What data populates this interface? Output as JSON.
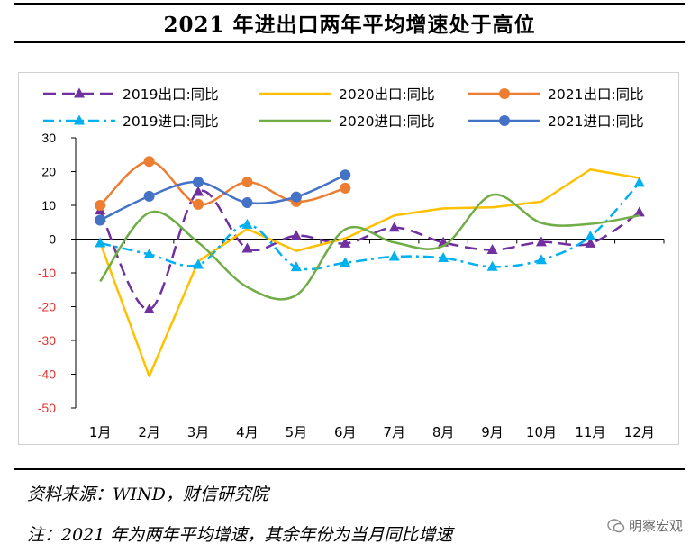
{
  "page": {
    "title": "2021 年进出口两年平均增速处于高位",
    "source_note": "资料来源：WIND，财信研究院",
    "footnote": "注：2021 年为两年平均增速，其余年份为当月同比增速",
    "watermark": "明察宏观"
  },
  "chart_data": {
    "type": "line",
    "title": "",
    "xlabel": "",
    "ylabel": "",
    "categories": [
      "1月",
      "2月",
      "3月",
      "4月",
      "5月",
      "6月",
      "7月",
      "8月",
      "9月",
      "10月",
      "11月",
      "12月"
    ],
    "ylim": [
      -50,
      30
    ],
    "yticks": [
      30,
      20,
      10,
      0,
      -10,
      -20,
      -30,
      -40,
      -50
    ],
    "grid": false,
    "legend_position": "top",
    "negative_tick_color": "#e3342f",
    "series": [
      {
        "name": "2019出口:同比",
        "color": "#7030a0",
        "dash": "14,7",
        "marker": "triangle",
        "smooth": true,
        "values": [
          8.5,
          -20.8,
          14.0,
          -2.8,
          1.0,
          -1.3,
          3.4,
          -1.0,
          -3.2,
          -0.9,
          -1.3,
          7.9
        ]
      },
      {
        "name": "2020出口:同比",
        "color": "#ffc000",
        "dash": "",
        "marker": "none",
        "smooth": false,
        "values": [
          -1.0,
          -40.6,
          -6.6,
          3.0,
          -3.5,
          0.2,
          7.0,
          9.1,
          9.4,
          11.1,
          20.6,
          18.1
        ]
      },
      {
        "name": "2021出口:同比",
        "color": "#ed7d31",
        "dash": "",
        "marker": "circle",
        "smooth": true,
        "values": [
          10.0,
          23.0,
          10.3,
          16.9,
          11.1,
          15.1,
          null,
          null,
          null,
          null,
          null,
          null
        ]
      },
      {
        "name": "2019进口:同比",
        "color": "#00b0f0",
        "dash": "12,5,3,5",
        "marker": "triangle",
        "smooth": true,
        "values": [
          -1.2,
          -4.5,
          -7.6,
          4.3,
          -8.3,
          -7.0,
          -5.2,
          -5.6,
          -8.2,
          -6.2,
          0.8,
          16.7
        ]
      },
      {
        "name": "2020进口:同比",
        "color": "#70ad47",
        "dash": "",
        "marker": "none",
        "smooth": true,
        "values": [
          -12.5,
          7.8,
          -1.0,
          -14.2,
          -16.6,
          2.9,
          -1.0,
          -2.0,
          13.1,
          4.8,
          4.5,
          7.0
        ]
      },
      {
        "name": "2021进口:同比",
        "color": "#4472c4",
        "dash": "",
        "marker": "circle",
        "smooth": true,
        "values": [
          5.6,
          12.7,
          16.9,
          10.8,
          12.5,
          19.0,
          null,
          null,
          null,
          null,
          null,
          null
        ]
      }
    ]
  }
}
